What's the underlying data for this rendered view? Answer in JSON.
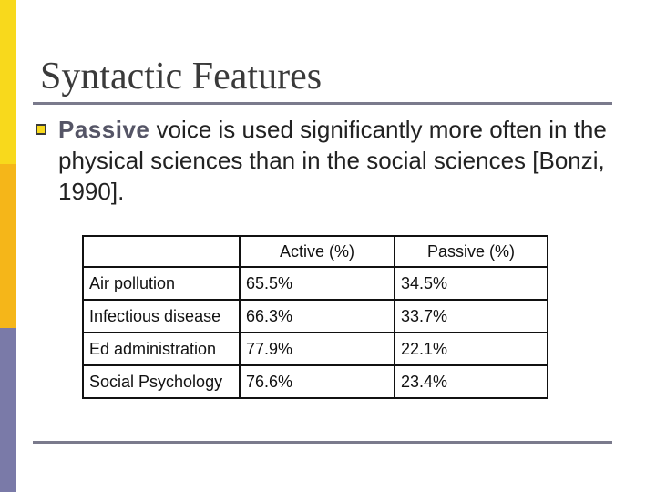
{
  "slide": {
    "title": "Syntactic Features",
    "bullet": {
      "emphasis": "Passive",
      "text": " voice is used significantly more often in the physical sciences than in the social sciences [Bonzi, 1990]."
    },
    "table": {
      "headers": [
        "",
        "Active (%)",
        "Passive (%)"
      ],
      "rows": [
        [
          "Air pollution",
          "65.5%",
          "34.5%"
        ],
        [
          "Infectious disease",
          "66.3%",
          "33.7%"
        ],
        [
          "Ed administration",
          "77.9%",
          "22.1%"
        ],
        [
          "Social Psychology",
          "76.6%",
          "23.4%"
        ]
      ]
    }
  },
  "colors": {
    "bar_top": "#f8d91c",
    "bar_middle": "#f5b619",
    "bar_bottom": "#7a7aa8",
    "rule": "#7a7a8c"
  }
}
